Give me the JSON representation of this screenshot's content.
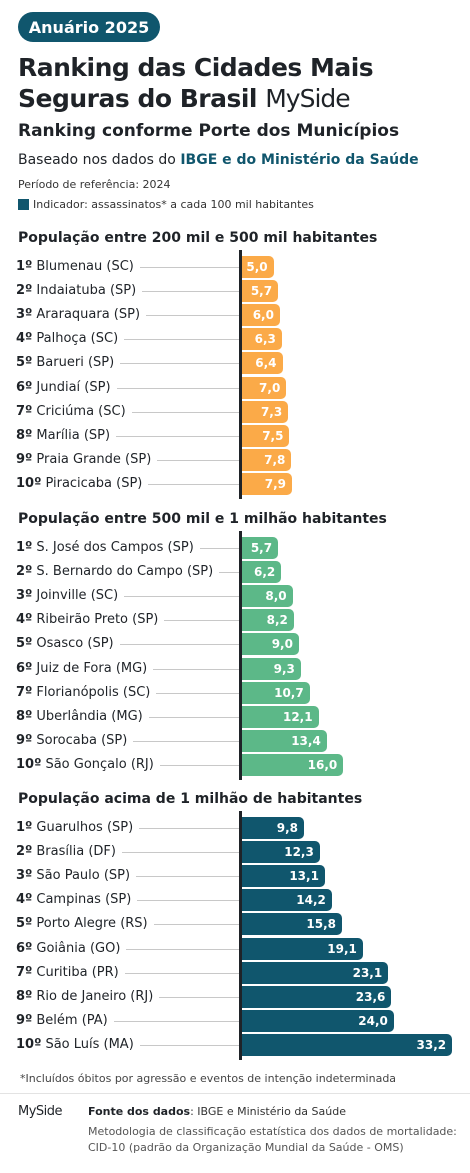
{
  "header": {
    "badge": "Anuário 2025",
    "title": "Ranking das Cidades Mais Seguras do Brasil",
    "brand": "MySide",
    "subtitle": "Ranking conforme Porte dos Municípios",
    "based_prefix": "Baseado nos dados do",
    "based_highlight": "IBGE e do Ministério da Saúde",
    "period": "Período de referência: 2024",
    "indicator": "Indicador: assassinatos* a cada 100 mil habitantes"
  },
  "colors": {
    "primary": "#10566d",
    "small": "#fbaa48",
    "medium": "#5cb888",
    "large": "#10566d"
  },
  "chart_data": [
    {
      "type": "bar",
      "orientation": "horizontal",
      "title": "População entre 200 mil e 500 mil habitantes",
      "color": "#fbaa48",
      "categories": [
        "Blumenau (SC)",
        "Indaiatuba (SP)",
        "Araraquara (SP)",
        "Palhoça (SC)",
        "Barueri (SP)",
        "Jundiaí (SP)",
        "Criciúma (SC)",
        "Marília (SP)",
        "Praia Grande (SP)",
        "Piracicaba (SP)"
      ],
      "ranks": [
        "1º",
        "2º",
        "3º",
        "4º",
        "5º",
        "6º",
        "7º",
        "8º",
        "9º",
        "10º"
      ],
      "values": [
        5.0,
        5.7,
        6.0,
        6.3,
        6.4,
        7.0,
        7.3,
        7.5,
        7.8,
        7.9
      ],
      "value_labels": [
        "5,0",
        "5,7",
        "6,0",
        "6,3",
        "6,4",
        "7,0",
        "7,3",
        "7,5",
        "7,8",
        "7,9"
      ]
    },
    {
      "type": "bar",
      "orientation": "horizontal",
      "title": "População entre 500 mil e 1 milhão habitantes",
      "color": "#5cb888",
      "categories": [
        "S. José dos Campos (SP)",
        "S. Bernardo do Campo (SP)",
        "Joinville (SC)",
        "Ribeirão Preto (SP)",
        "Osasco (SP)",
        "Juiz de Fora (MG)",
        "Florianópolis (SC)",
        "Uberlândia (MG)",
        "Sorocaba (SP)",
        "São Gonçalo (RJ)"
      ],
      "ranks": [
        "1º",
        "2º",
        "3º",
        "4º",
        "5º",
        "6º",
        "7º",
        "8º",
        "9º",
        "10º"
      ],
      "values": [
        5.7,
        6.2,
        8.0,
        8.2,
        9.0,
        9.3,
        10.7,
        12.1,
        13.4,
        16.0
      ],
      "value_labels": [
        "5,7",
        "6,2",
        "8,0",
        "8,2",
        "9,0",
        "9,3",
        "10,7",
        "12,1",
        "13,4",
        "16,0"
      ]
    },
    {
      "type": "bar",
      "orientation": "horizontal",
      "title": "População acima de 1 milhão de habitantes",
      "color": "#10566d",
      "categories": [
        "Guarulhos (SP)",
        "Brasília (DF)",
        "São Paulo (SP)",
        "Campinas (SP)",
        "Porto Alegre (RS)",
        "Goiânia (GO)",
        "Curitiba (PR)",
        "Rio de Janeiro (RJ)",
        "Belém (PA)",
        "São Luís (MA)"
      ],
      "ranks": [
        "1º",
        "2º",
        "3º",
        "4º",
        "5º",
        "6º",
        "7º",
        "8º",
        "9º",
        "10º"
      ],
      "values": [
        9.8,
        12.3,
        13.1,
        14.2,
        15.8,
        19.1,
        23.1,
        23.6,
        24.0,
        33.2
      ],
      "value_labels": [
        "9,8",
        "12,3",
        "13,1",
        "14,2",
        "15,8",
        "19,1",
        "23,1",
        "23,6",
        "24,0",
        "33,2"
      ]
    }
  ],
  "footer": {
    "footnote": "*Incluídos óbitos por agressão e eventos de intenção indeterminada",
    "logo": "MySide",
    "source_label": "Fonte dos dados",
    "source_text": ": IBGE e Ministério da Saúde",
    "methodology": "Metodologia de classificação estatística dos dados de mortalidade: CID-10 (padrão da Organização Mundial da Saúde - OMS)"
  }
}
